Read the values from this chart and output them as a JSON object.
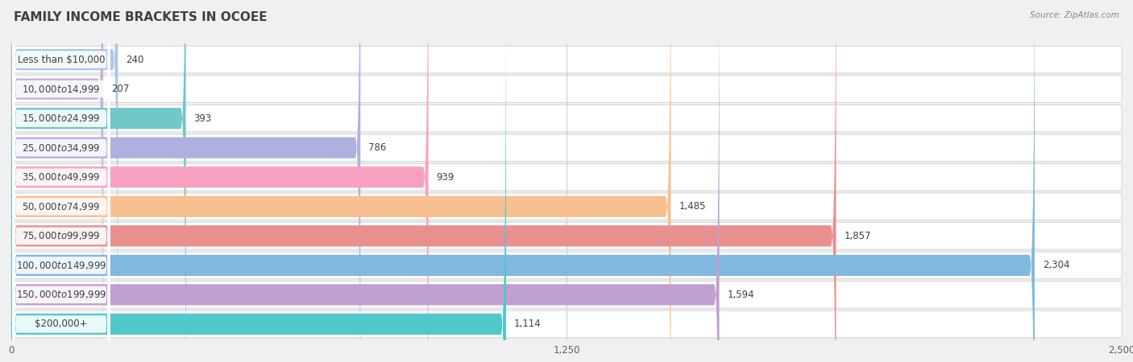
{
  "title": "FAMILY INCOME BRACKETS IN OCOEE",
  "source": "Source: ZipAtlas.com",
  "categories": [
    "Less than $10,000",
    "$10,000 to $14,999",
    "$15,000 to $24,999",
    "$25,000 to $34,999",
    "$35,000 to $49,999",
    "$50,000 to $74,999",
    "$75,000 to $99,999",
    "$100,000 to $149,999",
    "$150,000 to $199,999",
    "$200,000+"
  ],
  "values": [
    240,
    207,
    393,
    786,
    939,
    1485,
    1857,
    2304,
    1594,
    1114
  ],
  "bar_colors": [
    "#aac8e8",
    "#c8b0d8",
    "#70c8c8",
    "#b0b0e0",
    "#f8a0c0",
    "#f8c090",
    "#e89090",
    "#80b8e0",
    "#c0a0d0",
    "#50c8cc"
  ],
  "xlim": [
    0,
    2500
  ],
  "xticks": [
    0,
    1250,
    2500
  ],
  "xticklabels": [
    "0",
    "1,250",
    "2,500"
  ],
  "bg_color": "#f0f0f0",
  "row_bg_color": "#ffffff",
  "row_gap_color": "#e8e8e8",
  "title_fontsize": 11,
  "label_fontsize": 8.5,
  "value_fontsize": 8.5
}
